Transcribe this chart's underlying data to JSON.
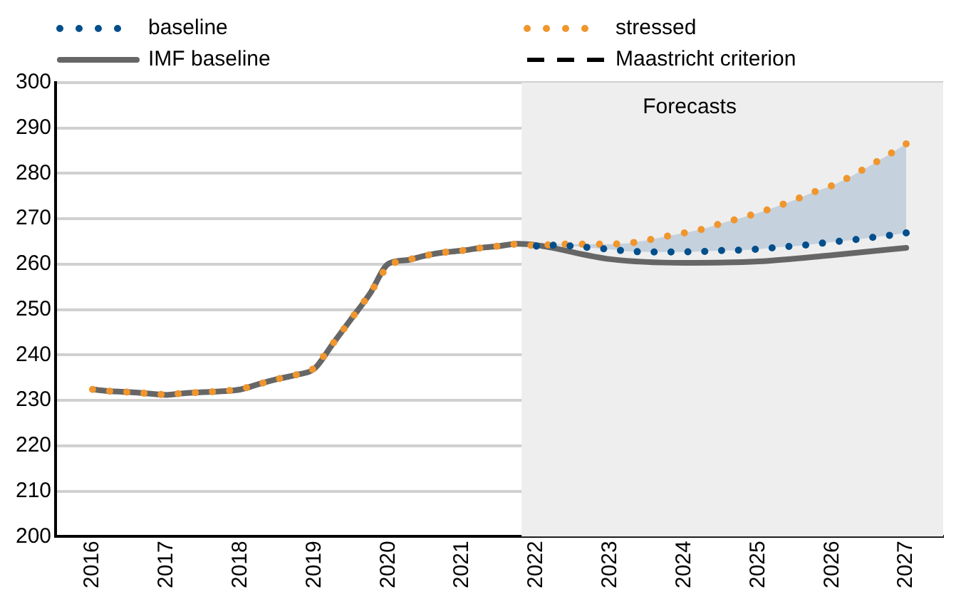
{
  "chart_data": {
    "type": "line",
    "x": [
      2016,
      2016.25,
      2016.5,
      2016.75,
      2017,
      2017.25,
      2017.5,
      2017.75,
      2018,
      2018.25,
      2018.5,
      2018.75,
      2019,
      2019.25,
      2019.5,
      2019.75,
      2020,
      2020.25,
      2020.5,
      2020.75,
      2021,
      2021.25,
      2021.5,
      2021.75,
      2022,
      2022.25,
      2022.5,
      2022.75,
      2023,
      2023.25,
      2023.5,
      2023.75,
      2024,
      2024.25,
      2024.5,
      2024.75,
      2025,
      2025.25,
      2025.5,
      2025.75,
      2026,
      2026.25,
      2026.5,
      2026.75,
      2027
    ],
    "series": [
      {
        "name": "baseline",
        "color": "#004f8c",
        "line_style": "dotted",
        "values": [
          null,
          null,
          null,
          null,
          null,
          null,
          null,
          null,
          null,
          null,
          null,
          null,
          null,
          null,
          null,
          null,
          null,
          null,
          null,
          null,
          null,
          null,
          null,
          null,
          264.0,
          264.2,
          264.0,
          263.6,
          263.3,
          262.8,
          262.7,
          262.7,
          262.7,
          262.8,
          263.0,
          263.1,
          263.3,
          263.7,
          264.0,
          264.4,
          264.9,
          265.3,
          265.8,
          266.3,
          266.9
        ]
      },
      {
        "name": "stressed",
        "color": "#f0962d",
        "line_style": "dotted",
        "values": [
          232.4,
          232.0,
          231.8,
          231.5,
          231.2,
          231.6,
          231.8,
          232.0,
          232.4,
          233.6,
          234.7,
          235.6,
          237.0,
          242.5,
          248.0,
          253.5,
          260.1,
          260.9,
          261.9,
          262.6,
          263.0,
          263.6,
          264.0,
          264.5,
          264.0,
          264.4,
          264.4,
          264.4,
          264.4,
          264.6,
          265.3,
          266.1,
          266.9,
          267.7,
          269.0,
          270.1,
          271.3,
          272.7,
          274.2,
          275.9,
          277.3,
          279.3,
          281.6,
          284.0,
          286.5
        ],
        "lower": [
          null,
          null,
          null,
          null,
          null,
          null,
          null,
          null,
          null,
          null,
          null,
          null,
          null,
          null,
          null,
          null,
          null,
          null,
          null,
          null,
          null,
          null,
          null,
          null,
          264.0,
          264.2,
          264.0,
          263.6,
          263.3,
          262.8,
          262.7,
          262.7,
          262.7,
          262.8,
          263.0,
          263.1,
          263.3,
          263.7,
          264.0,
          264.4,
          264.9,
          265.3,
          265.8,
          266.3,
          266.9
        ],
        "upper": [
          null,
          null,
          null,
          null,
          null,
          null,
          null,
          null,
          null,
          null,
          null,
          null,
          null,
          null,
          null,
          null,
          null,
          null,
          null,
          null,
          null,
          null,
          null,
          null,
          264.0,
          264.4,
          264.4,
          264.4,
          264.4,
          264.6,
          265.3,
          266.1,
          266.9,
          267.7,
          269.0,
          270.1,
          271.3,
          272.7,
          274.2,
          275.9,
          277.3,
          279.3,
          281.6,
          284.0,
          286.5
        ]
      },
      {
        "name": "IMF baseline",
        "color": "#666666",
        "line_style": "solid",
        "x": [
          2016,
          2016.25,
          2016.5,
          2016.75,
          2017,
          2017.25,
          2017.5,
          2017.75,
          2018,
          2018.25,
          2018.5,
          2018.75,
          2019,
          2019.25,
          2019.5,
          2019.75,
          2020,
          2020.25,
          2020.5,
          2020.75,
          2021,
          2021.25,
          2021.5,
          2021.75,
          2022,
          2023,
          2024,
          2025,
          2026,
          2027
        ],
        "values": [
          232.4,
          232.0,
          231.8,
          231.5,
          231.2,
          231.6,
          231.8,
          232.0,
          232.4,
          233.6,
          234.7,
          235.6,
          237.0,
          242.5,
          248.0,
          253.5,
          260.1,
          260.9,
          261.9,
          262.6,
          263.0,
          263.6,
          264.0,
          264.5,
          264.2,
          261.1,
          260.3,
          260.6,
          262.0,
          263.6
        ]
      },
      {
        "name": "Maastricht criterion",
        "color": "#000000",
        "line_style": "dashed",
        "values": [
          null,
          null,
          null,
          null,
          null,
          null,
          null,
          null,
          null,
          null,
          null,
          null,
          null,
          null,
          null,
          null,
          null,
          null,
          null,
          null,
          null,
          null,
          null,
          null,
          null,
          null,
          null,
          null,
          null,
          null,
          null,
          null,
          null,
          null,
          null,
          null,
          null,
          null,
          null,
          null,
          null,
          null,
          null,
          null,
          null
        ]
      }
    ],
    "xlim": [
      2015.5,
      2027.5
    ],
    "xticks": [
      2016,
      2017,
      2018,
      2019,
      2020,
      2021,
      2022,
      2023,
      2024,
      2025,
      2026,
      2027
    ],
    "ylim": [
      200,
      300
    ],
    "yticks": [
      200,
      210,
      220,
      230,
      240,
      250,
      260,
      270,
      280,
      290,
      300
    ],
    "grid": "y",
    "legend": "top",
    "bands": [
      {
        "axis": "x",
        "from": 2021.8,
        "to": 2027.5,
        "label": "Forecasts",
        "color": "#eeeeee"
      }
    ]
  }
}
